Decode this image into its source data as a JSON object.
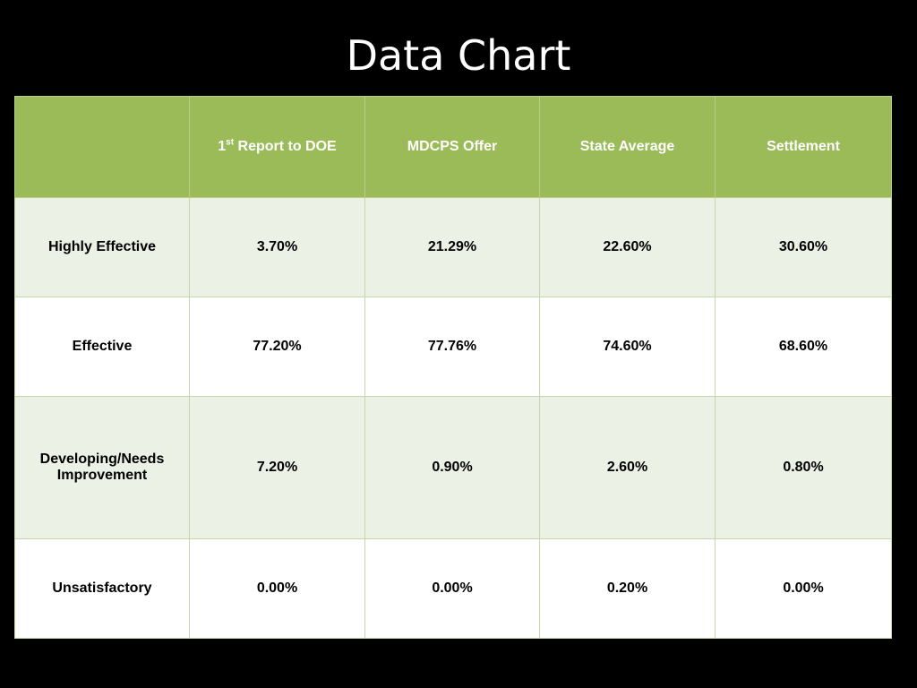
{
  "title": "Data Chart",
  "chart_data": {
    "type": "table",
    "columns": [
      {
        "label": "",
        "sup": "",
        "label_rest": ""
      },
      {
        "label": "1",
        "sup": "st",
        "label_rest": " Report to DOE"
      },
      {
        "label": "MDCPS Offer",
        "sup": "",
        "label_rest": ""
      },
      {
        "label": "State Average",
        "sup": "",
        "label_rest": ""
      },
      {
        "label": "Settlement",
        "sup": "",
        "label_rest": ""
      }
    ],
    "rows": [
      {
        "label": "Highly Effective",
        "values": [
          "3.70%",
          "21.29%",
          "22.60%",
          "30.60%"
        ]
      },
      {
        "label": "Effective",
        "values": [
          "77.20%",
          "77.76%",
          "74.60%",
          "68.60%"
        ]
      },
      {
        "label": "Developing/Needs Improvement",
        "values": [
          "7.20%",
          "0.90%",
          "2.60%",
          "0.80%"
        ]
      },
      {
        "label": "Unsatisfactory",
        "values": [
          "0.00%",
          "0.00%",
          "0.20%",
          "0.00%"
        ]
      }
    ],
    "colors": {
      "header_bg": "#9bbb59",
      "header_text": "#ffffff",
      "band_bg": "#ebf1e5",
      "plain_bg": "#ffffff",
      "slide_bg": "#000000"
    }
  }
}
